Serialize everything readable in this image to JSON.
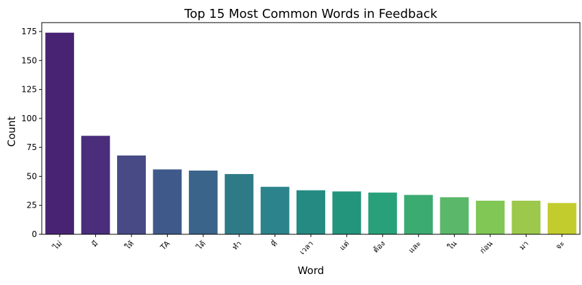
{
  "chart_data": {
    "type": "bar",
    "title": "Top 15 Most Common Words in Feedback",
    "xlabel": "Word",
    "ylabel": "Count",
    "categories": [
      "ไม่",
      "มี",
      "ให้",
      "TA",
      "ได้",
      "ทำ",
      "ที่",
      "เวลา",
      "แต่",
      "ต้อง",
      "และ",
      "ใน",
      "ก่อน",
      "มา",
      "จะ"
    ],
    "values": [
      174,
      85,
      68,
      56,
      55,
      52,
      41,
      38,
      37,
      36,
      34,
      32,
      29,
      29,
      27
    ],
    "ylim": [
      0,
      182.7
    ],
    "yticks": [
      0,
      25,
      50,
      75,
      100,
      125,
      150,
      175
    ],
    "grid": false,
    "legend": "none",
    "palette": "viridis",
    "colors": [
      "#482374",
      "#4a2d7b",
      "#474a85",
      "#3f5a8a",
      "#3a6489",
      "#2e7b87",
      "#2c838b",
      "#258a82",
      "#23957c",
      "#28a17a",
      "#3cab71",
      "#5bb86a",
      "#81c756",
      "#9cc84b",
      "#c3cc2d"
    ]
  }
}
